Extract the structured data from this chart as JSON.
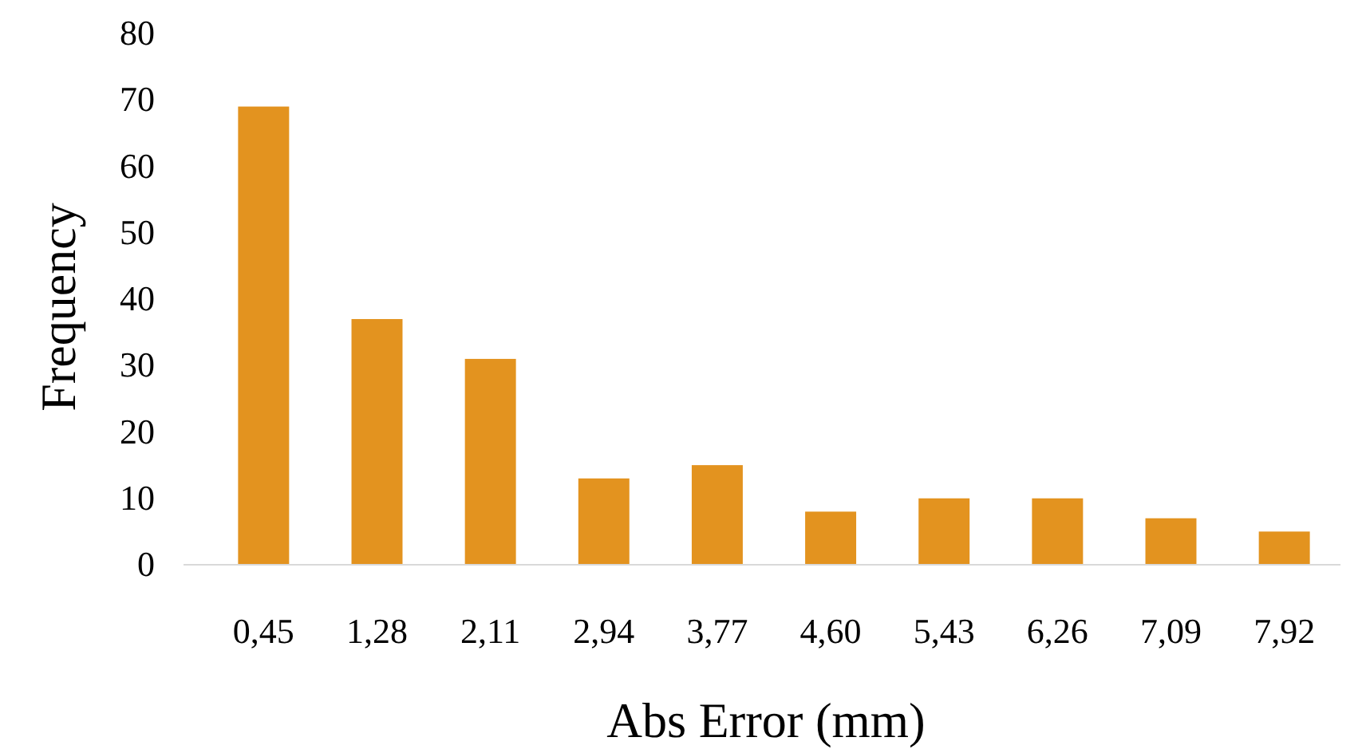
{
  "chart_data": {
    "type": "bar",
    "xlabel": "Abs Error (mm)",
    "ylabel": "Frequency",
    "categories": [
      "0,45",
      "1,28",
      "2,11",
      "2,94",
      "3,77",
      "4,60",
      "5,43",
      "6,26",
      "7,09",
      "7,92"
    ],
    "values": [
      69,
      37,
      31,
      13,
      15,
      8,
      10,
      10,
      7,
      5
    ],
    "color": "#e3931f",
    "ylim": [
      0,
      80
    ],
    "yticks": [
      0,
      10,
      20,
      30,
      40,
      50,
      60,
      70,
      80
    ]
  }
}
